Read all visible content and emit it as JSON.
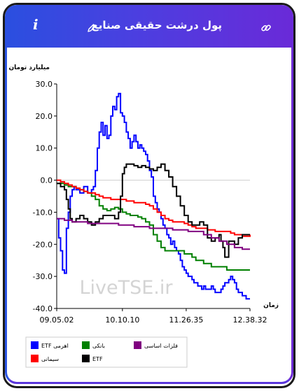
{
  "header": {
    "title": "پول درشت حقیقی صنایع",
    "info_label": "i",
    "icons": {
      "info": "info-icon",
      "edit": "pencil-icon",
      "link": "link-icon"
    }
  },
  "watermark": "LiveTSE.ir",
  "chart_data": {
    "type": "line",
    "ylabel": "میلیارد تومان",
    "xlabel": "زمان",
    "ylim": [
      -40,
      30
    ],
    "yticks": [
      "30.0",
      "20.0",
      "10.0",
      "0.0",
      "-10.0",
      "-20.0",
      "-30.0",
      "-40.0"
    ],
    "ytick_values": [
      30,
      20,
      10,
      0,
      -10,
      -20,
      -30,
      -40
    ],
    "xlim": [
      0,
      100
    ],
    "xticks": [
      "09.05.02",
      "10.10.10",
      "11.26.35",
      "12.38.32"
    ],
    "xtick_values": [
      0,
      34,
      67,
      100
    ],
    "grid": "horizontal-zero-only",
    "legend_position": "bottom",
    "series": [
      {
        "name": "ETF اهرمی",
        "color": "#0000ff",
        "x": [
          0,
          1,
          2,
          3,
          4,
          5,
          6,
          7,
          8,
          9,
          10,
          12,
          14,
          16,
          18,
          19,
          20,
          21,
          22,
          23,
          24,
          25,
          26,
          27,
          28,
          29,
          30,
          31,
          32,
          33,
          34,
          35,
          36,
          37,
          38,
          39,
          40,
          41,
          42,
          43,
          44,
          45,
          46,
          47,
          48,
          49,
          50,
          51,
          52,
          53,
          54,
          55,
          56,
          57,
          58,
          59,
          60,
          61,
          62,
          63,
          64,
          65,
          66,
          67,
          68,
          69,
          70,
          71,
          72,
          73,
          74,
          75,
          76,
          77,
          78,
          79,
          80,
          81,
          82,
          83,
          84,
          85,
          86,
          87,
          88,
          89,
          90,
          91,
          92,
          93,
          94,
          95,
          96,
          97,
          98,
          99,
          100
        ],
        "y": [
          -12,
          -18,
          -22,
          -28,
          -29,
          -15,
          -10,
          -5,
          -3,
          -2,
          -3,
          -4,
          -2,
          -4,
          -3,
          -2,
          3,
          10,
          15,
          18,
          14,
          17,
          13,
          14,
          20,
          23,
          22,
          26,
          27,
          21,
          20,
          18,
          15,
          13,
          10,
          12,
          14,
          12,
          10,
          11,
          10,
          9,
          8,
          6,
          3,
          1,
          -5,
          -7,
          -9,
          -10,
          -12,
          -14,
          -15,
          -17,
          -18,
          -20,
          -19,
          -21,
          -22,
          -23,
          -25,
          -27,
          -28,
          -29,
          -30,
          -30,
          -31,
          -32,
          -32,
          -33,
          -33,
          -34,
          -33,
          -34,
          -34,
          -34,
          -33,
          -34,
          -35,
          -35,
          -35,
          -34,
          -33,
          -32,
          -32,
          -31,
          -30,
          -31,
          -32,
          -34,
          -35,
          -35,
          -36,
          -36,
          -37,
          -37,
          -37
        ]
      },
      {
        "name": "بانکی",
        "color": "#008000",
        "x": [
          0,
          2,
          4,
          6,
          8,
          10,
          12,
          14,
          16,
          18,
          20,
          22,
          24,
          26,
          28,
          30,
          32,
          34,
          36,
          38,
          40,
          42,
          44,
          46,
          48,
          50,
          52,
          54,
          56,
          58,
          60,
          62,
          64,
          66,
          68,
          70,
          72,
          74,
          76,
          78,
          80,
          82,
          84,
          86,
          88,
          90,
          92,
          94,
          96,
          98,
          100
        ],
        "y": [
          -1,
          -1,
          -1.5,
          -2,
          -2,
          -2.5,
          -3,
          -3.5,
          -4,
          -5,
          -6,
          -8,
          -9,
          -9.5,
          -9,
          -8.5,
          -9,
          -10,
          -10.5,
          -11,
          -11,
          -11.5,
          -12,
          -13,
          -14,
          -17,
          -19,
          -21,
          -22,
          -22,
          -22,
          -22,
          -22,
          -23,
          -23,
          -24,
          -25,
          -25,
          -26,
          -26,
          -27,
          -27,
          -27,
          -27,
          -28,
          -28,
          -28,
          -28,
          -28,
          -28,
          -28
        ]
      },
      {
        "name": "سیمانی",
        "color": "#ff0000",
        "x": [
          0,
          2,
          4,
          6,
          8,
          10,
          12,
          14,
          16,
          18,
          20,
          22,
          24,
          26,
          28,
          30,
          32,
          34,
          36,
          38,
          40,
          42,
          44,
          46,
          48,
          50,
          52,
          54,
          56,
          58,
          60,
          62,
          64,
          66,
          68,
          70,
          72,
          74,
          76,
          78,
          80,
          82,
          84,
          86,
          88,
          90,
          92,
          94,
          96,
          98,
          100
        ],
        "y": [
          0,
          -0.5,
          -1,
          -1.5,
          -2,
          -2.5,
          -3,
          -3.5,
          -4,
          -4,
          -4.5,
          -5,
          -5.5,
          -5.5,
          -6,
          -6,
          -6,
          -6,
          -6.5,
          -6.5,
          -7,
          -7,
          -7,
          -7.5,
          -8,
          -9,
          -10,
          -11,
          -12,
          -12.5,
          -13,
          -13,
          -13,
          -13.5,
          -14,
          -14.5,
          -15,
          -15,
          -15,
          -15.5,
          -15.5,
          -16,
          -16,
          -16,
          -16,
          -16.5,
          -17,
          -17,
          -17.5,
          -17.5,
          -17
        ]
      },
      {
        "name": "ETF",
        "color": "#000000",
        "x": [
          0,
          2,
          4,
          5,
          6,
          7,
          8,
          10,
          12,
          14,
          16,
          18,
          20,
          22,
          24,
          26,
          28,
          30,
          32,
          33,
          34,
          35,
          36,
          38,
          40,
          42,
          44,
          46,
          48,
          50,
          52,
          54,
          56,
          58,
          60,
          62,
          64,
          66,
          68,
          70,
          72,
          74,
          76,
          78,
          80,
          82,
          84,
          85,
          86,
          87,
          88,
          89,
          90,
          92,
          94,
          96,
          98,
          100
        ],
        "y": [
          -1,
          -2,
          -3,
          -6,
          -9,
          -12,
          -13,
          -12,
          -11,
          -12,
          -13,
          -14,
          -13,
          -12,
          -11,
          -11,
          -11,
          -12,
          -10,
          -5,
          2,
          4,
          5,
          5,
          4.5,
          4,
          4.5,
          4,
          3.5,
          3,
          4,
          5,
          3,
          1,
          -2,
          -5,
          -8,
          -11,
          -13,
          -14,
          -14,
          -13,
          -14,
          -18,
          -19,
          -18,
          -17,
          -19,
          -21,
          -24,
          -24,
          -19,
          -19,
          -20,
          -18,
          -17,
          -17,
          -17
        ]
      },
      {
        "name": "فلزات اساسی",
        "color": "#800080",
        "x": [
          0,
          4,
          8,
          12,
          16,
          20,
          24,
          28,
          32,
          36,
          40,
          44,
          48,
          52,
          56,
          60,
          64,
          68,
          72,
          76,
          80,
          84,
          88,
          92,
          96,
          100
        ],
        "y": [
          -12,
          -12.5,
          -13,
          -13,
          -13.5,
          -13.5,
          -13.5,
          -13.5,
          -14,
          -14,
          -14.5,
          -14.5,
          -15,
          -15,
          -15,
          -15.5,
          -15.5,
          -16,
          -16,
          -17,
          -18,
          -19,
          -20,
          -21,
          -21.5,
          -21.5
        ]
      }
    ]
  }
}
